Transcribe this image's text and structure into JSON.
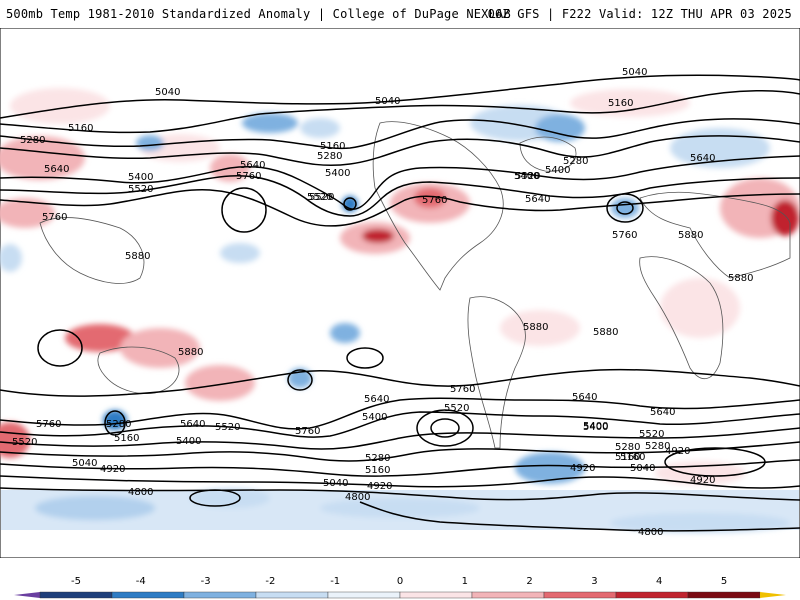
{
  "header": {
    "left_title": "500mb Temp 1981-2010 Standardized Anomaly | College of DuPage NEXLAB",
    "right_title": "06Z GFS | F222 Valid: 12Z THU APR 03 2025"
  },
  "colorbar": {
    "ticks": [
      "-5",
      "-4",
      "-3",
      "-2",
      "-1",
      "0",
      "1",
      "2",
      "3",
      "4",
      "5"
    ],
    "colors": [
      "#6a3fa0",
      "#1f3f7a",
      "#2e7cc4",
      "#7fb1e0",
      "#c7ddf2",
      "#eaf2fa",
      "#fbe4e6",
      "#f2b4b8",
      "#e36a71",
      "#c0242f",
      "#7a0a12",
      "#f0c000"
    ]
  },
  "contour_labels": [
    {
      "text": "5040"
    },
    {
      "text": "5040"
    },
    {
      "text": "5040"
    },
    {
      "text": "5160"
    },
    {
      "text": "5160"
    },
    {
      "text": "5160"
    },
    {
      "text": "5280"
    },
    {
      "text": "5280"
    },
    {
      "text": "5280"
    },
    {
      "text": "5640"
    },
    {
      "text": "5640"
    },
    {
      "text": "5760"
    },
    {
      "text": "5400"
    },
    {
      "text": "5520"
    },
    {
      "text": "5400"
    },
    {
      "text": "5520"
    },
    {
      "text": "5520"
    },
    {
      "text": "5400"
    },
    {
      "text": "5760"
    },
    {
      "text": "5640"
    },
    {
      "text": "5760"
    },
    {
      "text": "5880"
    },
    {
      "text": "5880"
    },
    {
      "text": "5880"
    },
    {
      "text": "5880"
    },
    {
      "text": "5880"
    },
    {
      "text": "5880"
    },
    {
      "text": "5760"
    },
    {
      "text": "5640"
    },
    {
      "text": "5520"
    },
    {
      "text": "5400"
    },
    {
      "text": "5400"
    },
    {
      "text": "5760"
    },
    {
      "text": "5640"
    },
    {
      "text": "5400"
    },
    {
      "text": "5520"
    },
    {
      "text": "5280"
    },
    {
      "text": "5160"
    },
    {
      "text": "5040"
    },
    {
      "text": "4920"
    },
    {
      "text": "4920"
    },
    {
      "text": "4800"
    },
    {
      "text": "4800"
    },
    {
      "text": "4920"
    },
    {
      "text": "4800"
    },
    {
      "text": "5760"
    },
    {
      "text": "5520"
    },
    {
      "text": "5280"
    },
    {
      "text": "5160"
    },
    {
      "text": "5040"
    },
    {
      "text": "4920"
    },
    {
      "text": "5640"
    },
    {
      "text": "5520"
    },
    {
      "text": "5400"
    },
    {
      "text": "5280"
    },
    {
      "text": "5160"
    },
    {
      "text": "5640"
    },
    {
      "text": "5520"
    },
    {
      "text": "5400"
    },
    {
      "text": "5280"
    },
    {
      "text": "5160"
    },
    {
      "text": "5040"
    },
    {
      "text": "4920"
    },
    {
      "text": "5760"
    },
    {
      "text": "5640"
    }
  ]
}
